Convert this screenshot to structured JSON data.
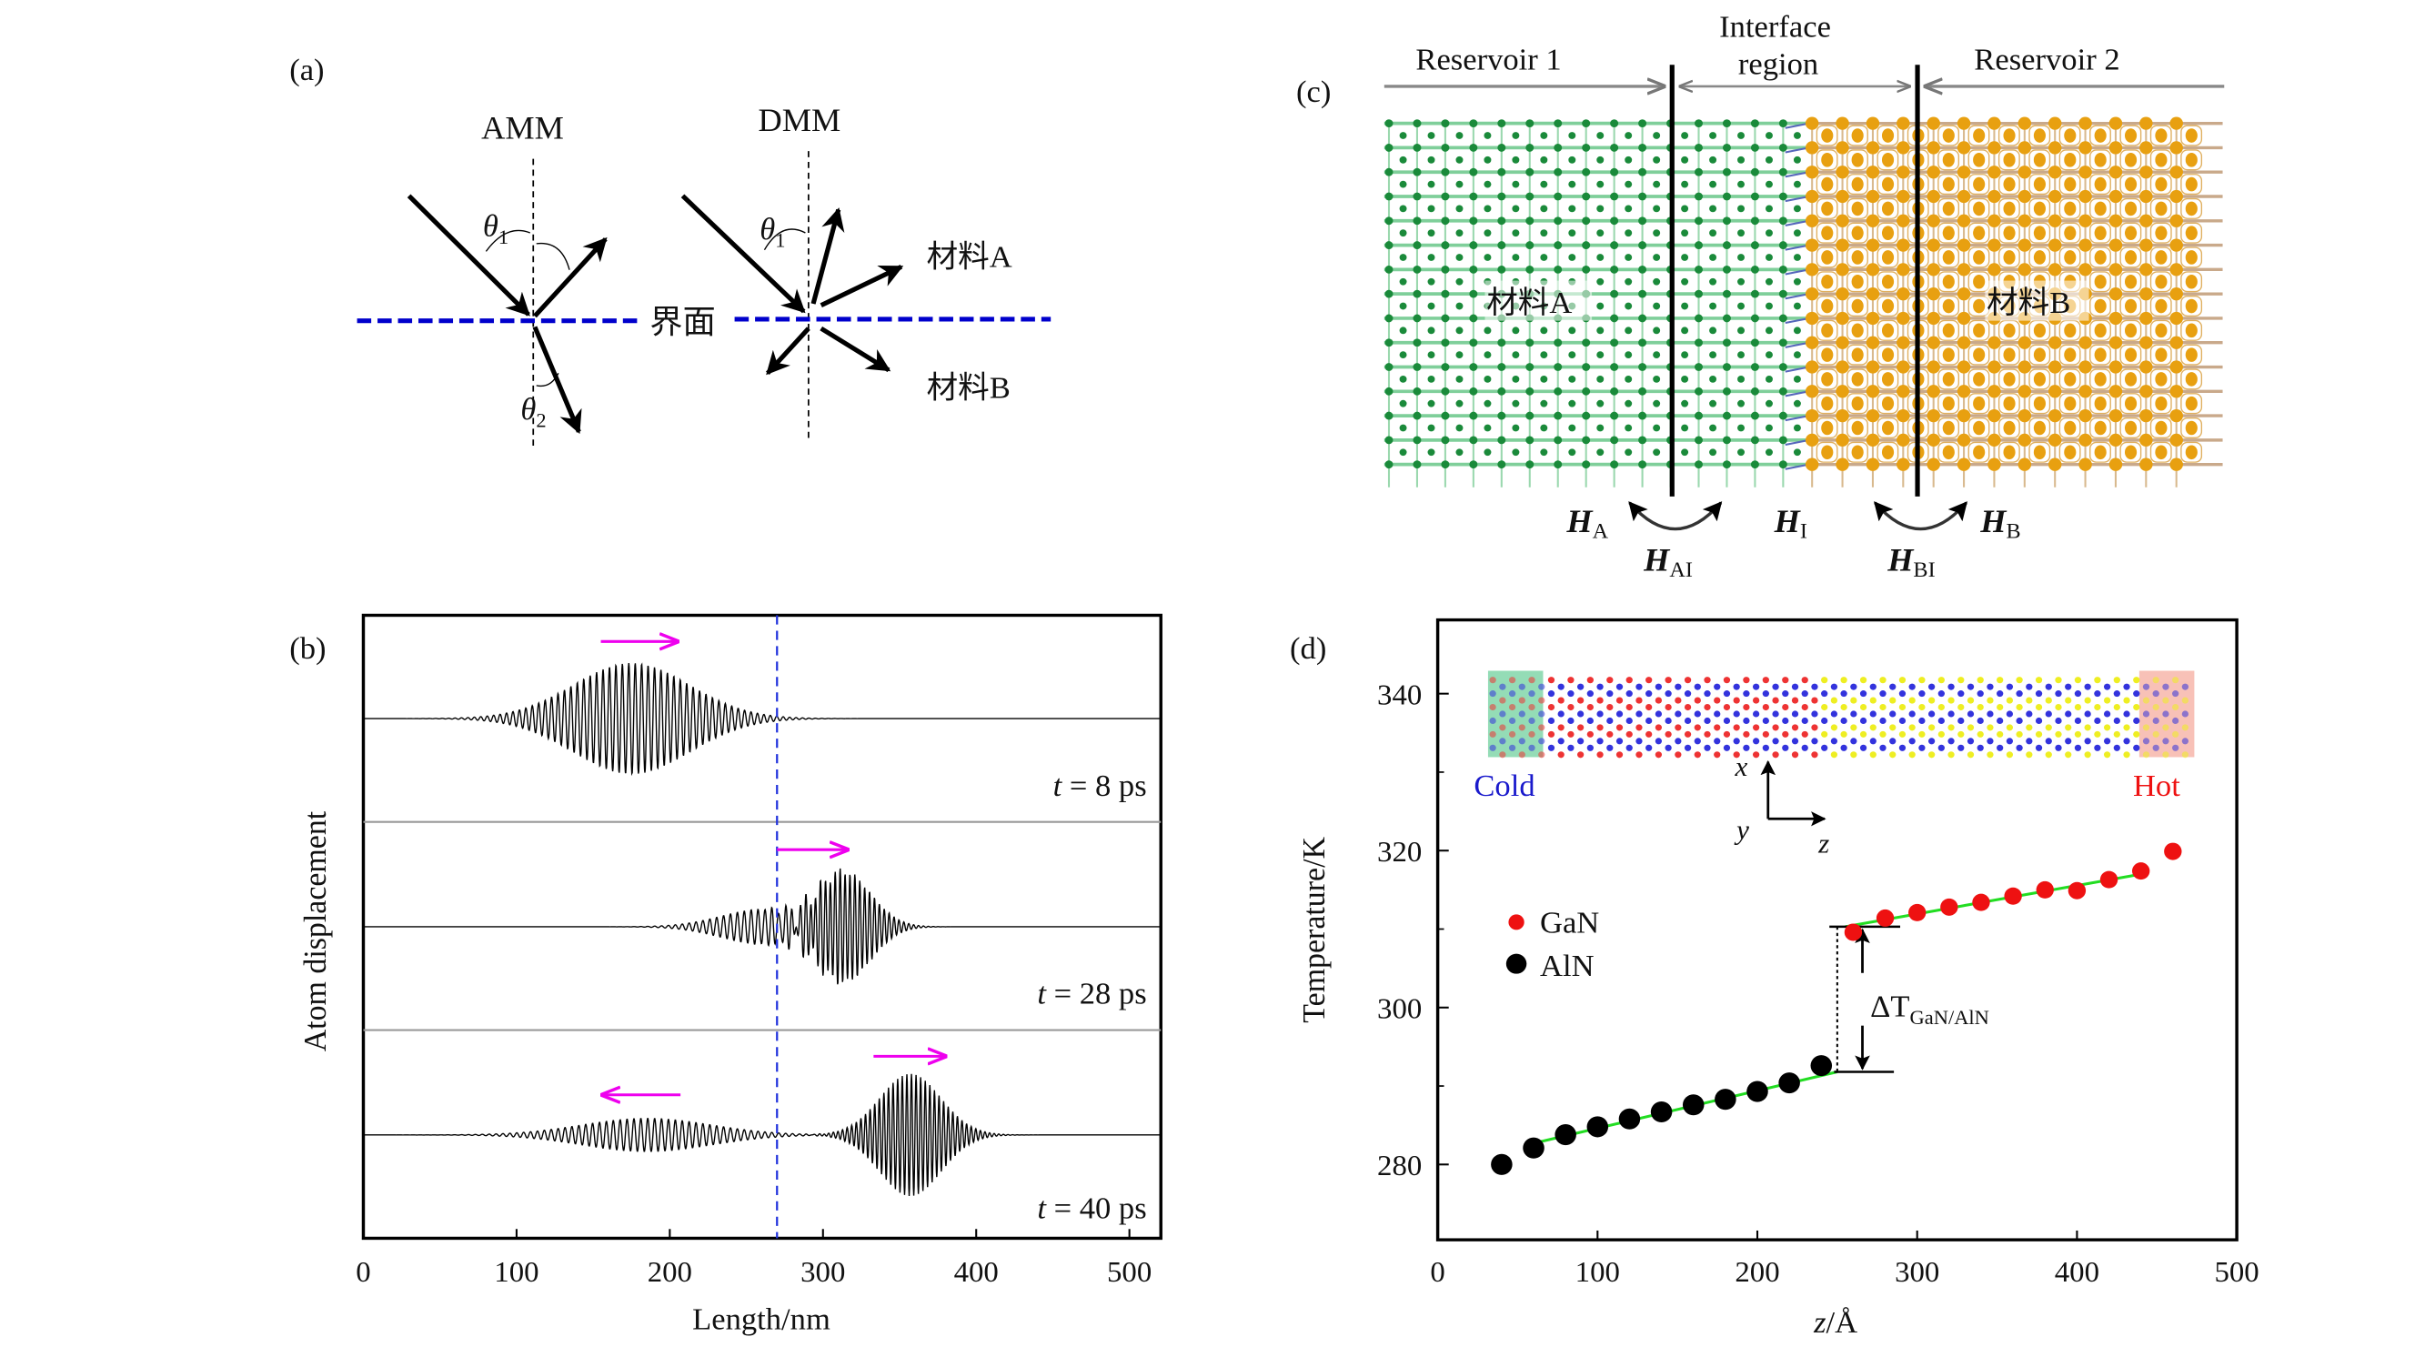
{
  "panel_labels": {
    "a": "(a)",
    "b": "(b)",
    "c": "(c)",
    "d": "(d)"
  },
  "panel_a": {
    "amm_label": "AMM",
    "dmm_label": "DMM",
    "theta1": "θ",
    "theta1_sub": "1",
    "theta2": "θ",
    "theta2_sub": "2",
    "interface_label": "界面",
    "material_a": "材料A",
    "material_b": "材料B",
    "interface_color": "#0000cc"
  },
  "panel_c": {
    "reservoir1": "Reservoir 1",
    "interface_line1": "Interface",
    "interface_line2": "region",
    "reservoir2": "Reservoir 2",
    "material_a": "材料A",
    "material_b": "材料B",
    "h_a": "H",
    "h_a_sub": "A",
    "h_ai": "H",
    "h_ai_sub": "AI",
    "h_i": "H",
    "h_i_sub": "I",
    "h_bi": "H",
    "h_bi_sub": "BI",
    "h_b": "H",
    "h_b_sub": "B",
    "green": "#1a8a3a",
    "orange": "#e8a010"
  },
  "chart_data": [
    {
      "id": "b",
      "type": "line",
      "title": "",
      "xlabel": "Length/nm",
      "ylabel": "Atom displacement",
      "xlim": [
        0,
        520
      ],
      "xticks": [
        0,
        100,
        200,
        300,
        400,
        500
      ],
      "xtick_labels": [
        "0",
        "100",
        "200",
        "300",
        "400",
        "500"
      ],
      "interface_x": 270,
      "interface_color": "#2233dd",
      "arrow_color": "#ee00ee",
      "series": [
        {
          "name": "t = 8 ps",
          "label_t": "t",
          "label_rest": " = 8 ps",
          "packets": [
            {
              "center": 175,
              "sigma": 38,
              "amplitude": 1.0,
              "wavelength": 4.2
            }
          ],
          "arrows": [
            {
              "from": 155,
              "to": 205,
              "direction": "right"
            }
          ]
        },
        {
          "name": "t = 28 ps",
          "label_t": "t",
          "label_rest": " = 28 ps",
          "packets": [
            {
              "center": 313,
              "sigma": 18,
              "amplitude": 1.0,
              "wavelength": 3.2
            },
            {
              "center": 262,
              "sigma": 28,
              "amplitude": 0.32,
              "wavelength": 4.5
            }
          ],
          "arrows": [
            {
              "from": 270,
              "to": 316,
              "direction": "right"
            }
          ]
        },
        {
          "name": "t = 40 ps",
          "label_t": "t",
          "label_rest": " = 40 ps",
          "packets": [
            {
              "center": 185,
              "sigma": 42,
              "amplitude": 0.3,
              "wavelength": 4.5
            },
            {
              "center": 357,
              "sigma": 20,
              "amplitude": 1.1,
              "wavelength": 3.0
            }
          ],
          "arrows": [
            {
              "from": 207,
              "to": 156,
              "direction": "left"
            },
            {
              "from": 333,
              "to": 380,
              "direction": "right"
            }
          ]
        }
      ]
    },
    {
      "id": "d",
      "type": "scatter",
      "title": "",
      "xlabel": "z/Å",
      "ylabel": "Temperature/K",
      "xlim": [
        0,
        500
      ],
      "ylim": [
        270.4,
        349.4
      ],
      "xticks": [
        0,
        100,
        200,
        300,
        400,
        500
      ],
      "xtick_labels": [
        "0",
        "100",
        "200",
        "300",
        "400",
        "500"
      ],
      "yticks": [
        280,
        300,
        320,
        340
      ],
      "ytick_labels": [
        "280",
        "300",
        "320",
        "340"
      ],
      "minor_yticks": [
        290,
        310,
        330
      ],
      "legend": {
        "position": "left-middle",
        "entries": [
          "GaN",
          "AlN"
        ]
      },
      "series": [
        {
          "name": "AlN",
          "color": "#000000",
          "x": [
            40,
            60,
            80,
            100,
            120,
            140,
            160,
            180,
            200,
            220,
            240
          ],
          "y": [
            280.0,
            282.1,
            283.8,
            284.8,
            285.8,
            286.7,
            287.6,
            288.3,
            289.3,
            290.4,
            292.6
          ]
        },
        {
          "name": "GaN",
          "color": "#ee1111",
          "x": [
            260,
            280,
            300,
            320,
            340,
            360,
            380,
            400,
            420,
            440,
            460
          ],
          "y": [
            309.6,
            311.4,
            312.1,
            312.8,
            313.4,
            314.2,
            315.0,
            314.9,
            316.3,
            317.4,
            319.9
          ]
        }
      ],
      "fits": [
        {
          "name": "AlN fit",
          "color": "#22dd22",
          "x": [
            60,
            250
          ],
          "y": [
            282.7,
            291.8
          ]
        },
        {
          "name": "GaN fit",
          "color": "#22dd22",
          "x": [
            255,
            440
          ],
          "y": [
            310.3,
            317.0
          ]
        }
      ],
      "delta_t": {
        "label_main": "ΔT",
        "label_sub": "GaN/AlN",
        "x": 250,
        "y_high": 310.3,
        "y_low": 291.8
      },
      "inset": {
        "cold_label": "Cold",
        "hot_label": "Hot",
        "cold_color": "#1a1acc",
        "hot_color": "#ee1111",
        "axis_x": "x",
        "axis_y": "y",
        "axis_z": "z",
        "gan_atom_color": "#ee3333",
        "aln_atom_color": "#eeee22",
        "n_atom_color": "#3333dd"
      }
    }
  ]
}
